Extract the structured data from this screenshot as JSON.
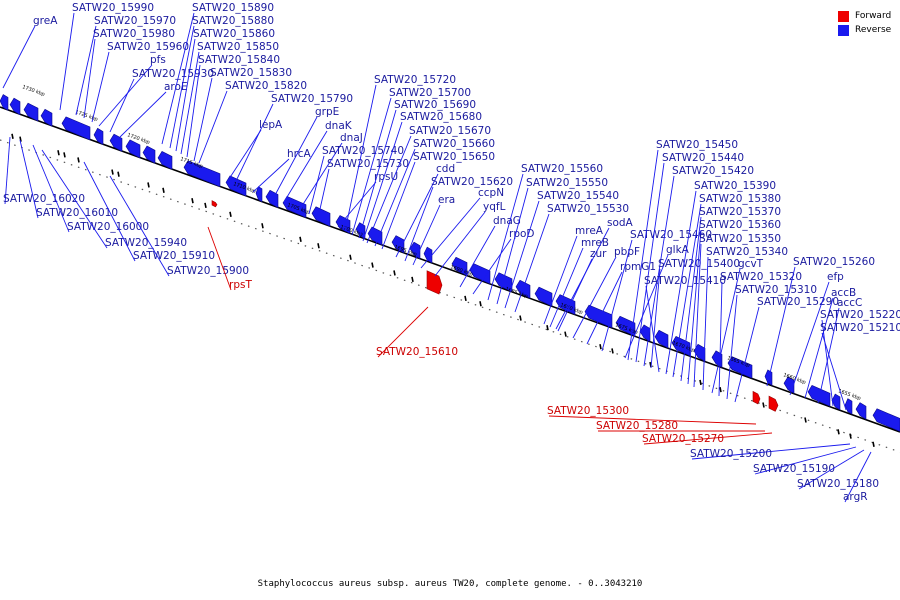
{
  "caption": "Staphylococcus aureus subsp. aureus TW20, complete genome. - 0..3043210",
  "legend": [
    {
      "label": "Forward",
      "color": "#ee0000"
    },
    {
      "label": "Reverse",
      "color": "#1a1aee"
    }
  ],
  "colors": {
    "forward": "#ee0000",
    "reverse": "#1a1aee",
    "forward_label": "#cc0000",
    "reverse_label": "#1a1a9e"
  },
  "ticks": [
    "1730 kbp",
    "1725 kbp",
    "1720 kbp",
    "1715 kbp",
    "1710 kbp",
    "1705 kbp",
    "1700 kbp",
    "1695 kbp",
    "1690 kbp",
    "1685 kbp",
    "1680 kbp",
    "1675 kbp",
    "1670 kbp",
    "1665 kbp",
    "1660 kbp",
    "1655 kbp"
  ],
  "reverse_labels": [
    "greA",
    "SATW20_15990",
    "SATW20_15970",
    "SATW20_15980",
    "SATW20_15960",
    "pfs",
    "SATW20_15930",
    "aroE",
    "SATW20_15890",
    "SATW20_15880",
    "SATW20_15860",
    "SATW20_15850",
    "SATW20_15840",
    "SATW20_15830",
    "SATW20_15820",
    "SATW20_15790",
    "grpE",
    "lepA",
    "dnaK",
    "dnaJ",
    "hrcA",
    "SATW20_15740",
    "SATW20_15730",
    "rpsU",
    "SATW20_15720",
    "SATW20_15700",
    "SATW20_15690",
    "SATW20_15680",
    "SATW20_15670",
    "SATW20_15660",
    "SATW20_15650",
    "cdd",
    "SATW20_15620",
    "era",
    "ccpN",
    "yqfL",
    "dnaG",
    "rpoD",
    "SATW20_15560",
    "SATW20_15550",
    "SATW20_15540",
    "SATW20_15530",
    "sodA",
    "mreA",
    "mreB",
    "zur",
    "pbpF",
    "rpmG1",
    "SATW20_15460",
    "glkA",
    "SATW20_15450",
    "SATW20_15440",
    "SATW20_15420",
    "SATW20_15400",
    "SATW20_15410",
    "SATW20_15390",
    "SATW20_15380",
    "SATW20_15370",
    "SATW20_15360",
    "SATW20_15350",
    "SATW20_15340",
    "gcvT",
    "SATW20_15320",
    "SATW20_15310",
    "SATW20_15290",
    "SATW20_15260",
    "efp",
    "accB",
    "accC",
    "SATW20_15220",
    "SATW20_15210",
    "SATW20_16020",
    "SATW20_16010",
    "SATW20_16000",
    "SATW20_15940",
    "SATW20_15910",
    "SATW20_15900",
    "SATW20_15200",
    "SATW20_15190",
    "SATW20_15180",
    "argR"
  ],
  "forward_labels": [
    "rpsT",
    "SATW20_15610",
    "SATW20_15300",
    "SATW20_15280",
    "SATW20_15270"
  ]
}
